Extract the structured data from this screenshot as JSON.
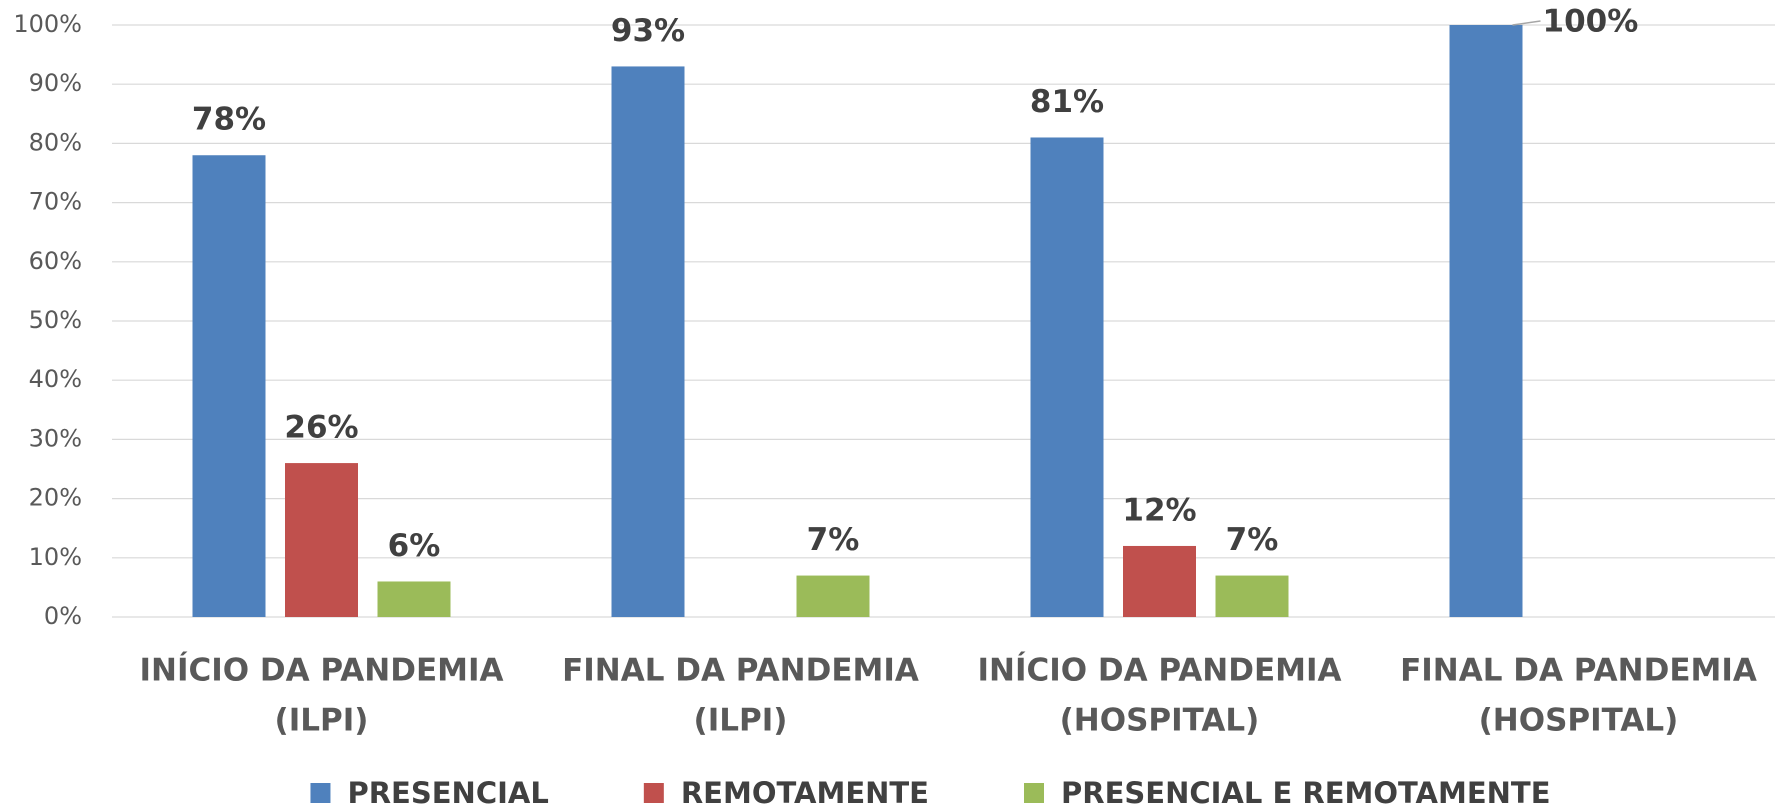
{
  "chart_data": {
    "type": "bar",
    "categories": [
      [
        "INÍCIO DA PANDEMIA",
        "(ILPI)"
      ],
      [
        "FINAL DA PANDEMIA",
        "(ILPI)"
      ],
      [
        "INÍCIO DA PANDEMIA",
        "(HOSPITAL)"
      ],
      [
        "FINAL DA PANDEMIA",
        "(HOSPITAL)"
      ]
    ],
    "series": [
      {
        "name": "PRESENCIAL",
        "color": "#4f81bd",
        "values": [
          78,
          93,
          81,
          100
        ],
        "value_labels": [
          "78%",
          "93%",
          "81%",
          "100%"
        ]
      },
      {
        "name": "REMOTAMENTE",
        "color": "#c0504d",
        "values": [
          26,
          null,
          12,
          null
        ],
        "value_labels": [
          "26%",
          null,
          "12%",
          null
        ]
      },
      {
        "name": "PRESENCIAL E REMOTAMENTE",
        "color": "#9bbb59",
        "values": [
          6,
          7,
          7,
          null
        ],
        "value_labels": [
          "6%",
          "7%",
          "7%",
          null
        ]
      }
    ],
    "ylim": [
      0,
      100
    ],
    "yticks": [
      {
        "value": 0,
        "label": "0%"
      },
      {
        "value": 10,
        "label": "10%"
      },
      {
        "value": 20,
        "label": "20%"
      },
      {
        "value": 30,
        "label": "30%"
      },
      {
        "value": 40,
        "label": "40%"
      },
      {
        "value": 50,
        "label": "50%"
      },
      {
        "value": 60,
        "label": "60%"
      },
      {
        "value": 70,
        "label": "70%"
      },
      {
        "value": 80,
        "label": "80%"
      },
      {
        "value": 90,
        "label": "90%"
      },
      {
        "value": 100,
        "label": "100%"
      }
    ],
    "grid": true,
    "legend": "bottom"
  }
}
